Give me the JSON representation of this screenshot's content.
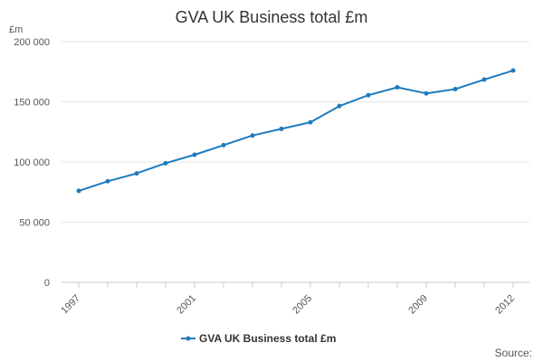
{
  "chart_data": {
    "type": "line",
    "title": "GVA UK Business total £m",
    "ylabel": "£m",
    "xlabel": "",
    "ylim": [
      0,
      200000
    ],
    "y_ticks": [
      0,
      50000,
      100000,
      150000,
      200000
    ],
    "y_tick_labels": [
      "0",
      "50 000",
      "100 000",
      "150 000",
      "200 000"
    ],
    "x_range": [
      1997,
      2012
    ],
    "x_tick_labels": [
      "1997",
      "2001",
      "2005",
      "2009",
      "2012"
    ],
    "grid": true,
    "legend_position": "bottom-center",
    "series": [
      {
        "name": "GVA UK Business total £m",
        "color": "#1f7bbf",
        "x": [
          1997,
          1998,
          1999,
          2000,
          2001,
          2002,
          2003,
          2004,
          2005,
          2006,
          2007,
          2008,
          2009,
          2010,
          2011,
          2012
        ],
        "values": [
          76000,
          84000,
          90500,
          99000,
          106000,
          114000,
          122000,
          127500,
          133000,
          146500,
          155500,
          162000,
          157000,
          160500,
          168500,
          176000
        ]
      }
    ]
  },
  "source_label": "Source:"
}
